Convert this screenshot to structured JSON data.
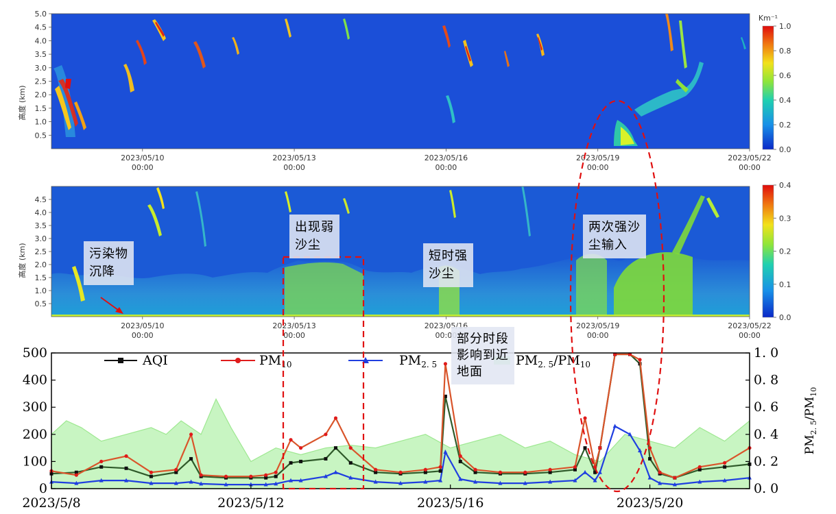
{
  "chart_data": [
    {
      "type": "heatmap",
      "ylabel": "高度 (km)",
      "y_ticks": [
        "0.5",
        "1.0",
        "1.5",
        "2.0",
        "2.5",
        "3.0",
        "3.5",
        "4.0",
        "4.5",
        "5.0"
      ],
      "x_ticks": [
        {
          "date": "2023/05/10",
          "time": "00:00"
        },
        {
          "date": "2023/05/13",
          "time": "00:00"
        },
        {
          "date": "2023/05/16",
          "time": "00:00"
        },
        {
          "date": "2023/05/19",
          "time": "00:00"
        },
        {
          "date": "2023/05/22",
          "time": "00:00"
        }
      ],
      "colorbar": {
        "unit": "Km⁻¹",
        "ticks": [
          "0.0",
          "0.2",
          "0.4",
          "0.6",
          "0.8",
          "1.0"
        ],
        "range": [
          0,
          1.0
        ]
      },
      "colors": {
        "background": "#1b4fd8"
      }
    },
    {
      "type": "heatmap",
      "ylabel": "高度 (km)",
      "y_ticks": [
        "0.5",
        "1.0",
        "1.5",
        "2.0",
        "2.5",
        "3.0",
        "3.5",
        "4.0",
        "4.5"
      ],
      "x_ticks": [
        {
          "date": "2023/05/10",
          "time": "00:00"
        },
        {
          "date": "2023/05/13",
          "time": "00:00"
        },
        {
          "date": "2023/05/16",
          "time": "00:00"
        },
        {
          "date": "2023/05/19",
          "time": "00:00"
        },
        {
          "date": "2023/05/22",
          "time": "00:00"
        }
      ],
      "colorbar": {
        "ticks": [
          "0.0",
          "0.1",
          "0.2",
          "0.3",
          "0.4"
        ],
        "range": [
          0,
          0.4
        ]
      },
      "annotations": [
        {
          "id": "pollutant",
          "text": "污染物\n沉降"
        },
        {
          "id": "weak",
          "text": "出现弱\n沙尘"
        },
        {
          "id": "short",
          "text": "短时强\n沙尘"
        },
        {
          "id": "strong",
          "text": "两次强沙\n尘输入"
        },
        {
          "id": "partial",
          "text": "部分时段\n影响到近\n地面"
        }
      ]
    },
    {
      "type": "line",
      "x_range": [
        "2023/5/8",
        "2023/5/22"
      ],
      "x_ticks": [
        "2023/5/8",
        "2023/5/12",
        "2023/5/16",
        "2023/5/20"
      ],
      "y_ticks": [
        "0",
        "100",
        "200",
        "300",
        "400",
        "500"
      ],
      "ylim": [
        0,
        500
      ],
      "y2_ticks": [
        "0. 0",
        "0. 2",
        "0. 4",
        "0. 6",
        "0. 8",
        "1. 0"
      ],
      "y2lim": [
        0,
        1.0
      ],
      "y2label": "PM2.5/PM10",
      "legend": [
        {
          "name": "AQI",
          "color": "#111111",
          "marker": "square"
        },
        {
          "name": "PM10",
          "color": "#e01b1b",
          "marker": "circle"
        },
        {
          "name": "PM2.5",
          "color": "#1f3ee0",
          "marker": "triangle"
        },
        {
          "name": "PM2.5/PM10",
          "color": "#b6f2b0",
          "marker": "area"
        }
      ],
      "series": [
        {
          "name": "AQI",
          "x": [
            8.0,
            8.5,
            9.0,
            9.5,
            10.0,
            10.5,
            10.8,
            11.0,
            11.5,
            12.0,
            12.3,
            12.5,
            12.8,
            13.0,
            13.5,
            13.7,
            14.0,
            14.5,
            15.0,
            15.5,
            15.8,
            15.9,
            16.2,
            16.5,
            17.0,
            17.5,
            18.0,
            18.5,
            18.7,
            18.9,
            19.0,
            19.3,
            19.6,
            19.8,
            20.0,
            20.2,
            20.5,
            21.0,
            21.5,
            22.0
          ],
          "values": [
            55,
            60,
            80,
            75,
            45,
            60,
            110,
            45,
            40,
            40,
            40,
            45,
            95,
            100,
            110,
            150,
            95,
            60,
            55,
            60,
            65,
            340,
            100,
            60,
            55,
            55,
            60,
            70,
            150,
            60,
            150,
            495,
            495,
            460,
            110,
            55,
            40,
            70,
            80,
            90
          ]
        },
        {
          "name": "PM10",
          "x": [
            8.0,
            8.5,
            9.0,
            9.5,
            10.0,
            10.5,
            10.8,
            11.0,
            11.5,
            12.0,
            12.3,
            12.5,
            12.8,
            13.0,
            13.5,
            13.7,
            14.0,
            14.5,
            15.0,
            15.5,
            15.8,
            15.9,
            16.2,
            16.5,
            17.0,
            17.5,
            18.0,
            18.5,
            18.7,
            18.9,
            19.0,
            19.3,
            19.6,
            19.8,
            20.0,
            20.2,
            20.5,
            21.0,
            21.5,
            22.0
          ],
          "values": [
            65,
            50,
            100,
            120,
            60,
            70,
            200,
            50,
            45,
            45,
            50,
            60,
            180,
            150,
            200,
            260,
            150,
            70,
            60,
            70,
            80,
            460,
            120,
            70,
            60,
            60,
            70,
            80,
            260,
            80,
            150,
            495,
            495,
            475,
            150,
            60,
            40,
            80,
            95,
            150
          ]
        },
        {
          "name": "PM2.5",
          "x": [
            8.0,
            8.5,
            9.0,
            9.5,
            10.0,
            10.5,
            10.8,
            11.0,
            11.5,
            12.0,
            12.3,
            12.5,
            12.8,
            13.0,
            13.5,
            13.7,
            14.0,
            14.5,
            15.0,
            15.5,
            15.8,
            15.9,
            16.2,
            16.5,
            17.0,
            17.5,
            18.0,
            18.5,
            18.7,
            18.9,
            19.0,
            19.3,
            19.6,
            19.8,
            20.0,
            20.2,
            20.5,
            21.0,
            21.5,
            22.0
          ],
          "values": [
            25,
            20,
            30,
            30,
            20,
            20,
            25,
            18,
            15,
            15,
            15,
            18,
            30,
            30,
            45,
            60,
            40,
            25,
            20,
            25,
            30,
            135,
            35,
            25,
            20,
            20,
            25,
            30,
            60,
            30,
            60,
            230,
            200,
            140,
            40,
            20,
            15,
            25,
            30,
            40
          ]
        },
        {
          "name": "PM2.5/PM10",
          "x": [
            8.0,
            8.3,
            8.6,
            9.0,
            9.5,
            10.0,
            10.3,
            10.6,
            11.0,
            11.3,
            11.6,
            12.0,
            12.5,
            13.0,
            13.5,
            14.0,
            14.5,
            15.0,
            15.5,
            16.0,
            16.5,
            17.0,
            17.5,
            18.0,
            18.5,
            19.0,
            19.5,
            20.0,
            20.5,
            21.0,
            21.5,
            22.0
          ],
          "values": [
            0.4,
            0.5,
            0.45,
            0.35,
            0.4,
            0.45,
            0.4,
            0.5,
            0.4,
            0.66,
            0.45,
            0.2,
            0.3,
            0.25,
            0.3,
            0.32,
            0.3,
            0.35,
            0.4,
            0.3,
            0.35,
            0.4,
            0.3,
            0.35,
            0.25,
            0.2,
            0.4,
            0.35,
            0.3,
            0.45,
            0.35,
            0.5
          ]
        }
      ]
    }
  ]
}
